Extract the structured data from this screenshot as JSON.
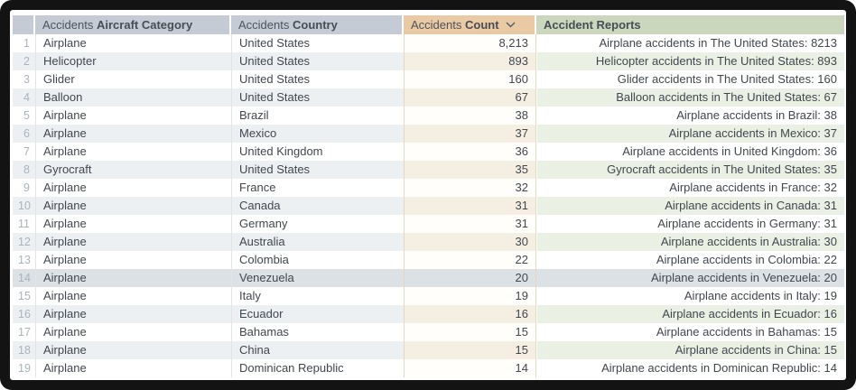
{
  "table": {
    "headers": [
      {
        "prefix": "Accidents ",
        "title": "Aircraft Category"
      },
      {
        "prefix": "Accidents ",
        "title": "Country"
      },
      {
        "prefix": "Accidents ",
        "title": "Count",
        "sort": "desc"
      },
      {
        "prefix": "",
        "title": "Accident Reports"
      }
    ],
    "highlighted_row_number": "14",
    "rows": [
      {
        "num": "1",
        "category": "Airplane",
        "country": "United States",
        "count": "8,213",
        "report": "Airplane accidents in The United States: 8213"
      },
      {
        "num": "2",
        "category": "Helicopter",
        "country": "United States",
        "count": "893",
        "report": "Helicopter accidents in The United States: 893"
      },
      {
        "num": "3",
        "category": "Glider",
        "country": "United States",
        "count": "160",
        "report": "Glider accidents in The United States: 160"
      },
      {
        "num": "4",
        "category": "Balloon",
        "country": "United States",
        "count": "67",
        "report": "Balloon accidents in The United States: 67"
      },
      {
        "num": "5",
        "category": "Airplane",
        "country": "Brazil",
        "count": "38",
        "report": "Airplane accidents in Brazil: 38"
      },
      {
        "num": "6",
        "category": "Airplane",
        "country": "Mexico",
        "count": "37",
        "report": "Airplane accidents in Mexico: 37"
      },
      {
        "num": "7",
        "category": "Airplane",
        "country": "United Kingdom",
        "count": "36",
        "report": "Airplane accidents in United Kingdom: 36"
      },
      {
        "num": "8",
        "category": "Gyrocraft",
        "country": "United States",
        "count": "35",
        "report": "Gyrocraft accidents in The United States: 35"
      },
      {
        "num": "9",
        "category": "Airplane",
        "country": "France",
        "count": "32",
        "report": "Airplane accidents in France: 32"
      },
      {
        "num": "10",
        "category": "Airplane",
        "country": "Canada",
        "count": "31",
        "report": "Airplane accidents in Canada: 31"
      },
      {
        "num": "11",
        "category": "Airplane",
        "country": "Germany",
        "count": "31",
        "report": "Airplane accidents in Germany: 31"
      },
      {
        "num": "12",
        "category": "Airplane",
        "country": "Australia",
        "count": "30",
        "report": "Airplane accidents in Australia: 30"
      },
      {
        "num": "13",
        "category": "Airplane",
        "country": "Colombia",
        "count": "22",
        "report": "Airplane accidents in Colombia: 22"
      },
      {
        "num": "14",
        "category": "Airplane",
        "country": "Venezuela",
        "count": "20",
        "report": "Airplane accidents in Venezuela: 20",
        "highlighted": true
      },
      {
        "num": "15",
        "category": "Airplane",
        "country": "Italy",
        "count": "19",
        "report": "Airplane accidents in Italy: 19"
      },
      {
        "num": "16",
        "category": "Airplane",
        "country": "Ecuador",
        "count": "16",
        "report": "Airplane accidents in Ecuador: 16"
      },
      {
        "num": "17",
        "category": "Airplane",
        "country": "Bahamas",
        "count": "15",
        "report": "Airplane accidents in Bahamas: 15"
      },
      {
        "num": "18",
        "category": "Airplane",
        "country": "China",
        "count": "15",
        "report": "Airplane accidents in China: 15"
      },
      {
        "num": "19",
        "category": "Airplane",
        "country": "Dominican Republic",
        "count": "14",
        "report": "Airplane accidents in Dominican Republic: 14"
      }
    ]
  },
  "colors": {
    "frame": "#131313",
    "header_neutral": "#c4cbd4",
    "header_count": "#eac9a5",
    "header_reports": "#cbd7bd",
    "row_even": "#edf0f3",
    "row_odd": "#ffffff",
    "count_even": "#f5eee2",
    "reports_even": "#eaf0e3",
    "row_highlight": "#dce1e6"
  }
}
